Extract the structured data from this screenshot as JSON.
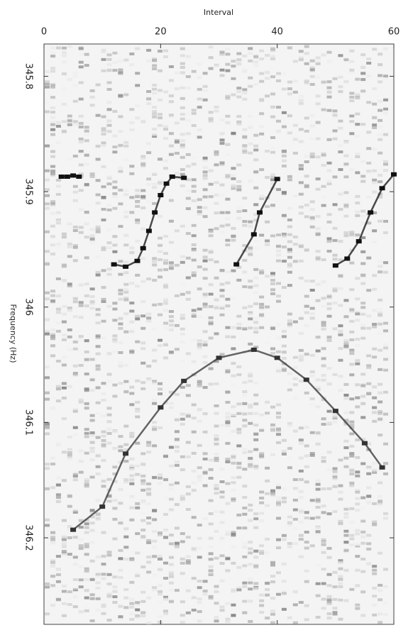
{
  "chart_data": {
    "type": "spectrogram",
    "x_label": "Interval",
    "y_label": "Frequency (Hz)",
    "xlim": [
      0,
      60
    ],
    "xticks": [
      0,
      20,
      40,
      60
    ],
    "ylim": [
      345.772,
      346.275
    ],
    "y_inverted": true,
    "yticks": [
      345.8,
      345.9,
      346,
      346.1,
      346.2
    ],
    "series": [
      {
        "color": "#111111",
        "x": [
          3,
          4,
          5,
          6,
          null,
          12,
          14,
          16,
          17,
          18,
          19,
          20,
          21,
          22,
          24,
          null,
          33,
          36,
          37,
          40,
          null,
          50,
          52,
          54,
          56,
          58,
          60
        ],
        "values": [
          345.887,
          345.887,
          345.886,
          345.887,
          null,
          345.963,
          345.965,
          345.96,
          345.949,
          345.934,
          345.918,
          345.903,
          345.893,
          345.887,
          345.888,
          null,
          345.963,
          345.937,
          345.918,
          345.889,
          null,
          345.964,
          345.958,
          345.943,
          345.918,
          345.897,
          345.885
        ]
      },
      {
        "color": "#333333",
        "x": [
          5,
          10,
          14,
          20,
          24,
          30,
          36,
          40,
          45,
          50,
          55,
          58
        ],
        "values": [
          346.193,
          346.173,
          346.127,
          346.087,
          346.064,
          346.044,
          346.037,
          346.044,
          346.063,
          346.09,
          346.118,
          346.139
        ]
      }
    ]
  }
}
